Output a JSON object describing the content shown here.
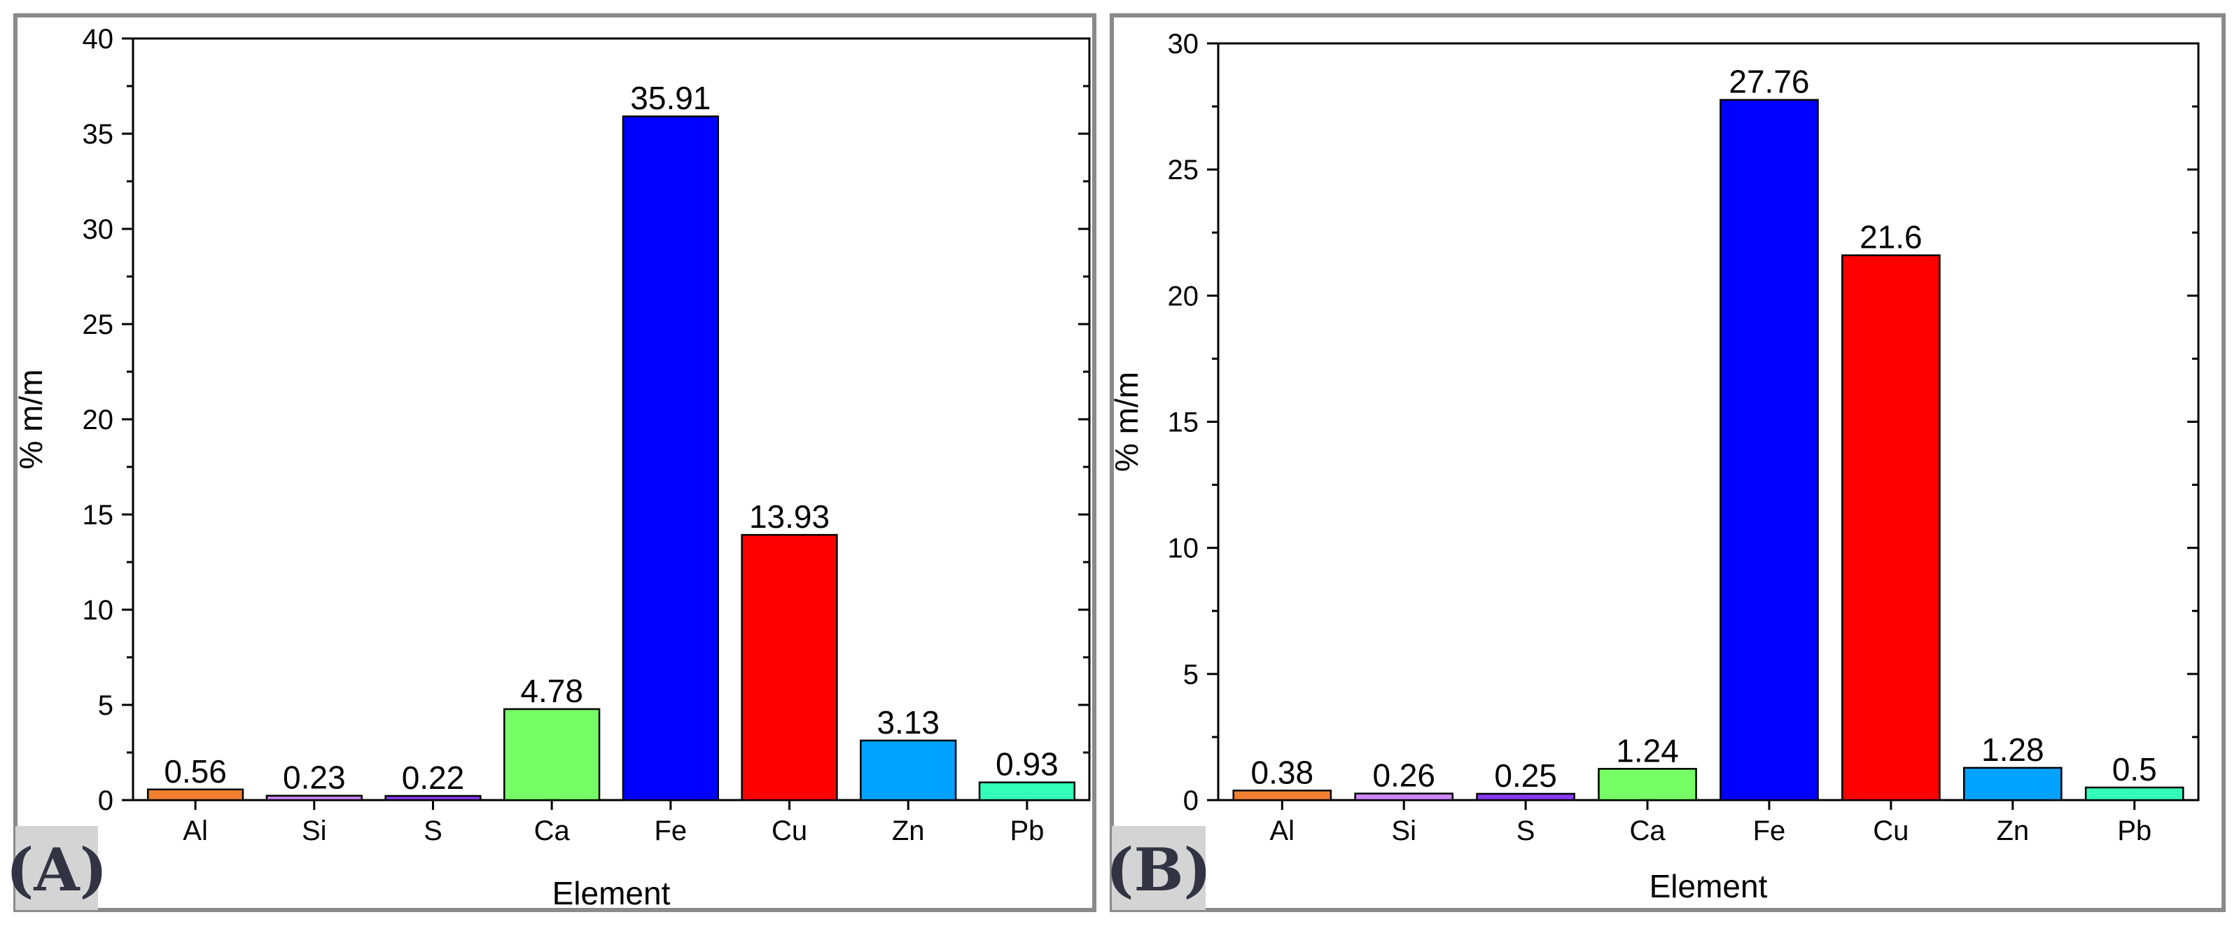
{
  "chart_data": [
    {
      "type": "bar",
      "panel_label": "(A)",
      "categories": [
        "Al",
        "Si",
        "S",
        "Ca",
        "Fe",
        "Cu",
        "Zn",
        "Pb"
      ],
      "values": [
        0.56,
        0.23,
        0.22,
        4.78,
        35.91,
        13.93,
        3.13,
        0.93
      ],
      "value_labels": [
        "0.56",
        "0.23",
        "0.22",
        "4.78",
        "35.91",
        "13.93",
        "3.13",
        "0.93"
      ],
      "colors": [
        "#f08030",
        "#cc88ff",
        "#8a3cf0",
        "#77ff66",
        "#0000ff",
        "#ff0000",
        "#00a2ff",
        "#33ffbb"
      ],
      "xlabel": "Element",
      "ylabel": "% m/m",
      "ylim": [
        0,
        40
      ],
      "yticks": [
        0,
        5,
        10,
        15,
        20,
        25,
        30,
        35,
        40
      ],
      "grid": false,
      "legend": "none"
    },
    {
      "type": "bar",
      "panel_label": "(B)",
      "categories": [
        "Al",
        "Si",
        "S",
        "Ca",
        "Fe",
        "Cu",
        "Zn",
        "Pb"
      ],
      "values": [
        0.38,
        0.26,
        0.25,
        1.24,
        27.76,
        21.6,
        1.28,
        0.5
      ],
      "value_labels": [
        "0.38",
        "0.26",
        "0.25",
        "1.24",
        "27.76",
        "21.6",
        "1.28",
        "0.5"
      ],
      "colors": [
        "#f08030",
        "#cc88ff",
        "#8a3cf0",
        "#77ff66",
        "#0000ff",
        "#ff0000",
        "#00a2ff",
        "#33ffbb"
      ],
      "xlabel": "Element",
      "ylabel": "% m/m",
      "ylim": [
        0,
        30
      ],
      "yticks": [
        0,
        5,
        10,
        15,
        20,
        25,
        30
      ],
      "grid": false,
      "legend": "none"
    }
  ]
}
